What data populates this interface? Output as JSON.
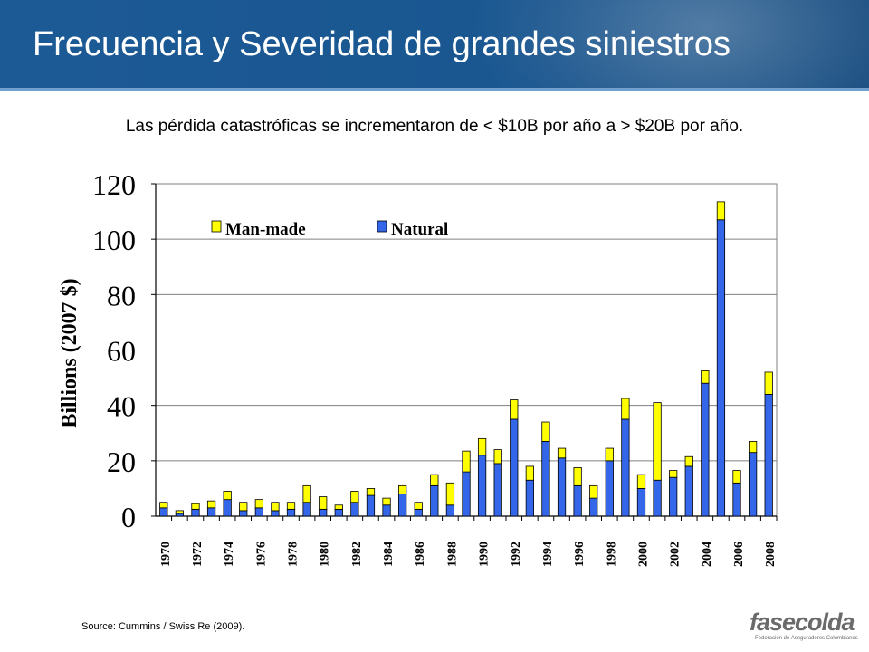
{
  "slide": {
    "title": "Frecuencia y Severidad de grandes siniestros",
    "subtitle": "Las pérdida catastróficas se incrementaron de < $10B por año a > $20B por año.",
    "source": "Source: Cummins / Swiss Re (2009).",
    "logo_text": "fasecolda",
    "logo_subtext": "Federación de Aseguradores Colombianos"
  },
  "chart_data": {
    "type": "bar",
    "stacked": true,
    "title": "",
    "xlabel": "",
    "ylabel": "Billions (2007 $)",
    "ylim": [
      0,
      120
    ],
    "yticks": [
      0,
      20,
      40,
      60,
      80,
      100,
      120
    ],
    "grid": true,
    "legend_position": "top-left",
    "categories": [
      1970,
      1971,
      1972,
      1973,
      1974,
      1975,
      1976,
      1977,
      1978,
      1979,
      1980,
      1981,
      1982,
      1983,
      1984,
      1985,
      1986,
      1987,
      1988,
      1989,
      1990,
      1991,
      1992,
      1993,
      1994,
      1995,
      1996,
      1997,
      1998,
      1999,
      2000,
      2001,
      2002,
      2003,
      2004,
      2005,
      2006,
      2007,
      2008
    ],
    "xtick_labels": [
      "1970",
      "1972",
      "1974",
      "1976",
      "1978",
      "1980",
      "1982",
      "1984",
      "1986",
      "1988",
      "1990",
      "1992",
      "1994",
      "1996",
      "1998",
      "2000",
      "2002",
      "2004",
      "2006",
      "2008"
    ],
    "series": [
      {
        "name": "Natural",
        "color": "#3366e8",
        "values": [
          3,
          1,
          2.5,
          3,
          6,
          2,
          3,
          2,
          2.5,
          5,
          2.5,
          2.5,
          5,
          7.5,
          4,
          8,
          2.5,
          11,
          4,
          16,
          22,
          19,
          35,
          13,
          27,
          21,
          11,
          6.5,
          20,
          35,
          10,
          13,
          14,
          18,
          48,
          107,
          12,
          23,
          44
        ]
      },
      {
        "name": "Man-made",
        "color": "#ffff00",
        "values": [
          2,
          1,
          2,
          2.5,
          3,
          3,
          3,
          3,
          2.5,
          6,
          4.5,
          1.5,
          4,
          2.5,
          2.5,
          3,
          2.5,
          4,
          8,
          7.5,
          6,
          5,
          7,
          5,
          7,
          3.5,
          6.5,
          4.5,
          4.5,
          7.5,
          5,
          28,
          2.5,
          3.5,
          4.5,
          6.5,
          4.5,
          4,
          8
        ]
      }
    ]
  }
}
